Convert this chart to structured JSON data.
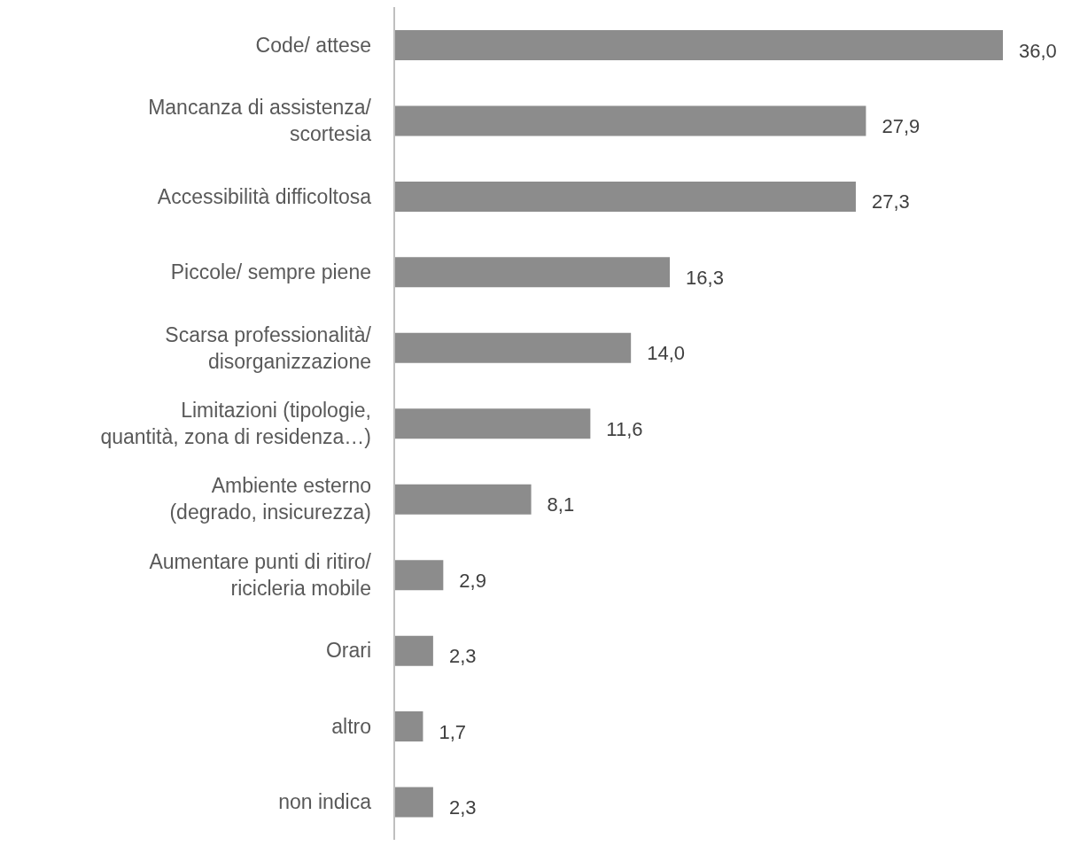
{
  "chart_data": {
    "type": "bar",
    "orientation": "horizontal",
    "categories": [
      "Code/ attese",
      "Mancanza di assistenza/\nscortesia",
      "Accessibilità difficoltosa",
      "Piccole/ sempre piene",
      "Scarsa professionalità/\ndisorganizzazione",
      "Limitazioni (tipologie,\nquantità, zona di residenza…)",
      "Ambiente esterno\n(degrado, insicurezza)",
      "Aumentare punti di ritiro/\nricicleria mobile",
      "Orari",
      "altro",
      "non indica"
    ],
    "values": [
      36.0,
      27.9,
      27.3,
      16.3,
      14.0,
      11.6,
      8.1,
      2.9,
      2.3,
      1.7,
      2.3
    ],
    "value_labels": [
      "36,0",
      "27,9",
      "27,3",
      "16,3",
      "14,0",
      "11,6",
      "8,1",
      "2,9",
      "2,3",
      "1,7",
      "2,3"
    ],
    "color": "#8c8c8c",
    "grid": false,
    "legend": false
  }
}
